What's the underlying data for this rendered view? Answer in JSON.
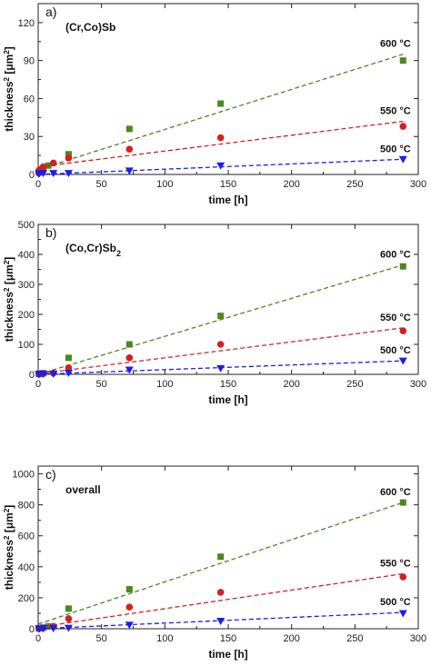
{
  "series_style": [
    {
      "temp": "600 °C",
      "color": "#4a8a1c",
      "marker": "square"
    },
    {
      "temp": "550 °C",
      "color": "#d42020",
      "marker": "circle"
    },
    {
      "temp": "500 °C",
      "color": "#1c1cf0",
      "marker": "triangle-down"
    }
  ],
  "chart_data": [
    {
      "type": "scatter",
      "panel": "a)",
      "compound": "(Cr,Co)Sb",
      "xlabel": "time [h]",
      "ylabel_main": "thickness",
      "ylabel_sup": "2",
      "ylabel_unit": "[μm",
      "ylabel_unit_sup": "2",
      "ylabel_close": "]",
      "xlim": [
        0,
        300
      ],
      "ylim": [
        0,
        135
      ],
      "xticks": [
        0,
        50,
        100,
        150,
        200,
        250,
        300
      ],
      "yticks": [
        0,
        30,
        60,
        90,
        120
      ],
      "series": [
        {
          "label": "600 °C",
          "x": [
            0.5,
            1,
            4,
            8,
            24,
            72,
            144,
            288
          ],
          "y": [
            2,
            3,
            5,
            7,
            16,
            36,
            56,
            90
          ],
          "fit": [
            [
              0,
              4
            ],
            [
              288,
              95
            ]
          ]
        },
        {
          "label": "550 °C",
          "x": [
            0.5,
            1,
            4,
            12,
            24,
            72,
            144,
            288
          ],
          "y": [
            1,
            3,
            6,
            9,
            13,
            20,
            29,
            38
          ],
          "fit": [
            [
              0,
              6
            ],
            [
              288,
              42
            ]
          ]
        },
        {
          "label": "500 °C",
          "x": [
            0.5,
            1,
            4,
            12,
            24,
            72,
            144,
            288
          ],
          "y": [
            0.5,
            1,
            1,
            1,
            1,
            3,
            7,
            12
          ],
          "fit": [
            [
              0,
              0
            ],
            [
              288,
              12
            ]
          ]
        }
      ]
    },
    {
      "type": "scatter",
      "panel": "b)",
      "compound": "(Co,Cr)Sb",
      "compound_sub": "2",
      "xlabel": "time [h]",
      "ylabel_main": "thickness",
      "ylabel_sup": "2",
      "ylabel_unit": "[μm",
      "ylabel_unit_sup": "2",
      "ylabel_close": "]",
      "xlim": [
        0,
        300
      ],
      "ylim": [
        0,
        500
      ],
      "xticks": [
        0,
        50,
        100,
        150,
        200,
        250,
        300
      ],
      "yticks": [
        0,
        100,
        200,
        300,
        400,
        500
      ],
      "series": [
        {
          "label": "600 °C",
          "x": [
            0.5,
            1,
            4,
            24,
            72,
            144,
            288
          ],
          "y": [
            1,
            2,
            4,
            55,
            100,
            195,
            360
          ],
          "fit": [
            [
              0,
              0
            ],
            [
              288,
              365
            ]
          ]
        },
        {
          "label": "550 °C",
          "x": [
            0.5,
            1,
            4,
            12,
            24,
            72,
            144,
            288
          ],
          "y": [
            1,
            2,
            3,
            4,
            22,
            55,
            100,
            145
          ],
          "fit": [
            [
              0,
              2
            ],
            [
              288,
              155
            ]
          ]
        },
        {
          "label": "500 °C",
          "x": [
            0.5,
            1,
            4,
            12,
            24,
            72,
            144,
            288
          ],
          "y": [
            0.5,
            1,
            1,
            2,
            5,
            15,
            20,
            45
          ],
          "fit": [
            [
              0,
              0
            ],
            [
              288,
              45
            ]
          ]
        }
      ]
    },
    {
      "type": "scatter",
      "panel": "c)",
      "compound": "overall",
      "xlabel": "time [h]",
      "ylabel_main": "thickness",
      "ylabel_sup": "2",
      "ylabel_unit": "[μm",
      "ylabel_unit_sup": "2",
      "ylabel_close": "]",
      "xlim": [
        0,
        300
      ],
      "ylim": [
        0,
        1050
      ],
      "xticks": [
        0,
        50,
        100,
        150,
        200,
        250,
        300
      ],
      "yticks": [
        0,
        200,
        400,
        600,
        800,
        1000
      ],
      "series": [
        {
          "label": "600 °C",
          "x": [
            0.5,
            1,
            4,
            8,
            24,
            72,
            144,
            288
          ],
          "y": [
            2,
            5,
            8,
            15,
            130,
            255,
            465,
            815
          ],
          "fit": [
            [
              0,
              30
            ],
            [
              288,
              815
            ]
          ]
        },
        {
          "label": "550 °C",
          "x": [
            0.5,
            1,
            4,
            12,
            24,
            72,
            144,
            288
          ],
          "y": [
            2,
            3,
            5,
            15,
            65,
            140,
            235,
            335
          ],
          "fit": [
            [
              0,
              10
            ],
            [
              288,
              355
            ]
          ]
        },
        {
          "label": "500 °C",
          "x": [
            0.5,
            1,
            4,
            12,
            24,
            72,
            144,
            288
          ],
          "y": [
            0.5,
            1,
            2,
            3,
            5,
            25,
            50,
            100
          ],
          "fit": [
            [
              0,
              0
            ],
            [
              288,
              105
            ]
          ]
        }
      ]
    }
  ]
}
